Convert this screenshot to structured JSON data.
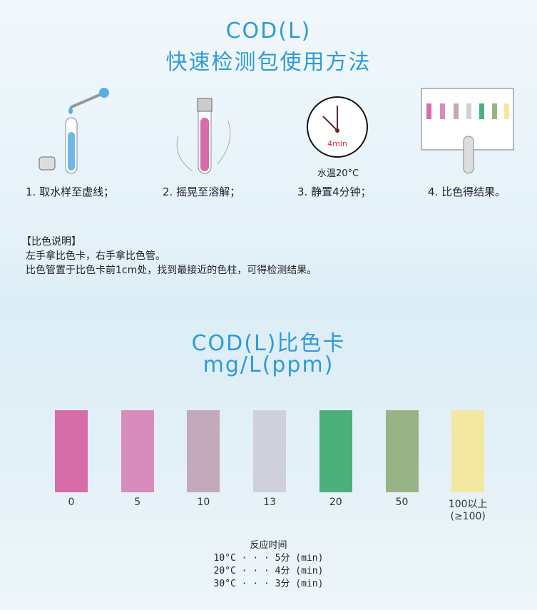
{
  "header": {
    "title_line1": "COD(L)",
    "title_line2": "快速检测包使用方法"
  },
  "steps": [
    {
      "label": "1. 取水样至虚线；"
    },
    {
      "label": "2. 摇晃至溶解；"
    },
    {
      "label": "3. 静置4分钟；",
      "clock_text": "4min",
      "caption": "水温20°C"
    },
    {
      "label": "4. 比色得结果。"
    }
  ],
  "notes": {
    "heading": "【比色说明】",
    "line1": "左手拿比色卡，右手拿比色管。",
    "line2": "比色管置于比色卡前1cm处，找到最接近的色柱，可得检测结果。"
  },
  "card": {
    "title_line1": "COD(L)比色卡",
    "title_line2": "mg/L(ppm)",
    "swatches": [
      {
        "label": "0",
        "color": "#d66ca8"
      },
      {
        "label": "5",
        "color": "#d88bbd"
      },
      {
        "label": "10",
        "color": "#c4a9bb"
      },
      {
        "label": "13",
        "color": "#cfd0da"
      },
      {
        "label": "20",
        "color": "#4bb07c"
      },
      {
        "label": "50",
        "color": "#98b487"
      },
      {
        "label": "100以上",
        "sub": "(≥100)",
        "color": "#f2e8a2"
      }
    ]
  },
  "reaction": {
    "heading": "反应时间",
    "rows": [
      "10°C · · · 5分 (min)",
      "20°C · · · 4分 (min)",
      "30°C · · · 3分 (min)"
    ]
  }
}
